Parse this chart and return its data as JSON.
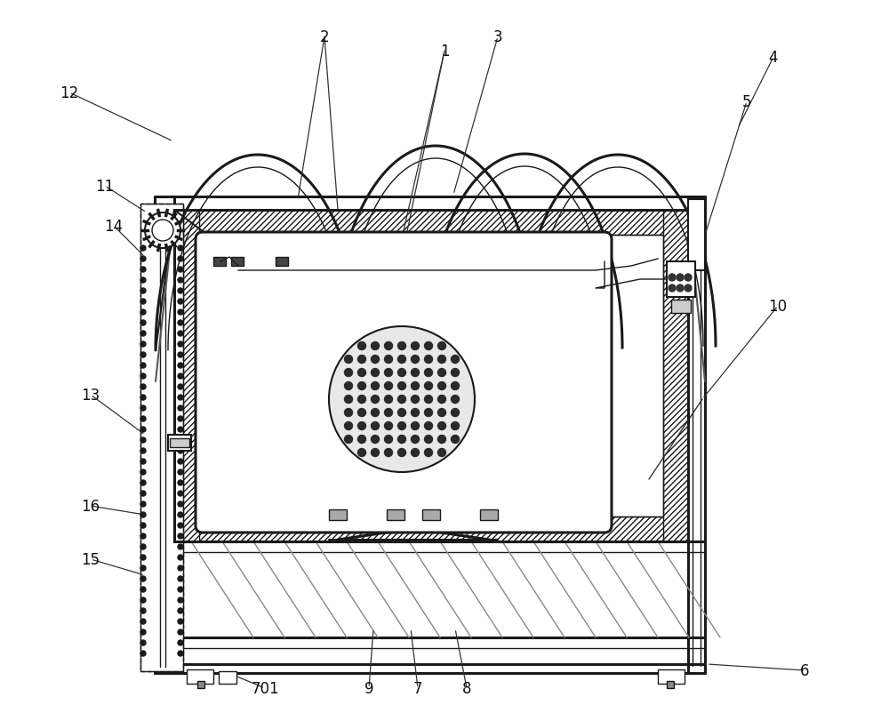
{
  "bg_color": "#ffffff",
  "line_color": "#1a1a1a",
  "figsize": [
    10.0,
    8.12
  ],
  "dpi": 100,
  "labels": {
    "1": [
      500,
      58,
      445,
      300
    ],
    "2": [
      365,
      42,
      335,
      225
    ],
    "3": [
      560,
      42,
      510,
      220
    ],
    "4": [
      870,
      65,
      830,
      145
    ],
    "5": [
      840,
      115,
      790,
      275
    ],
    "6": [
      905,
      755,
      795,
      748
    ],
    "7": [
      470,
      775,
      462,
      708
    ],
    "8": [
      525,
      775,
      512,
      708
    ],
    "9": [
      415,
      775,
      420,
      708
    ],
    "10": [
      875,
      345,
      790,
      450
    ],
    "11": [
      118,
      210,
      165,
      240
    ],
    "12": [
      78,
      105,
      195,
      160
    ],
    "13": [
      102,
      445,
      163,
      490
    ],
    "14": [
      128,
      255,
      163,
      290
    ],
    "15": [
      102,
      630,
      163,
      648
    ],
    "16": [
      102,
      570,
      163,
      580
    ],
    "701": [
      298,
      775,
      252,
      756
    ]
  }
}
